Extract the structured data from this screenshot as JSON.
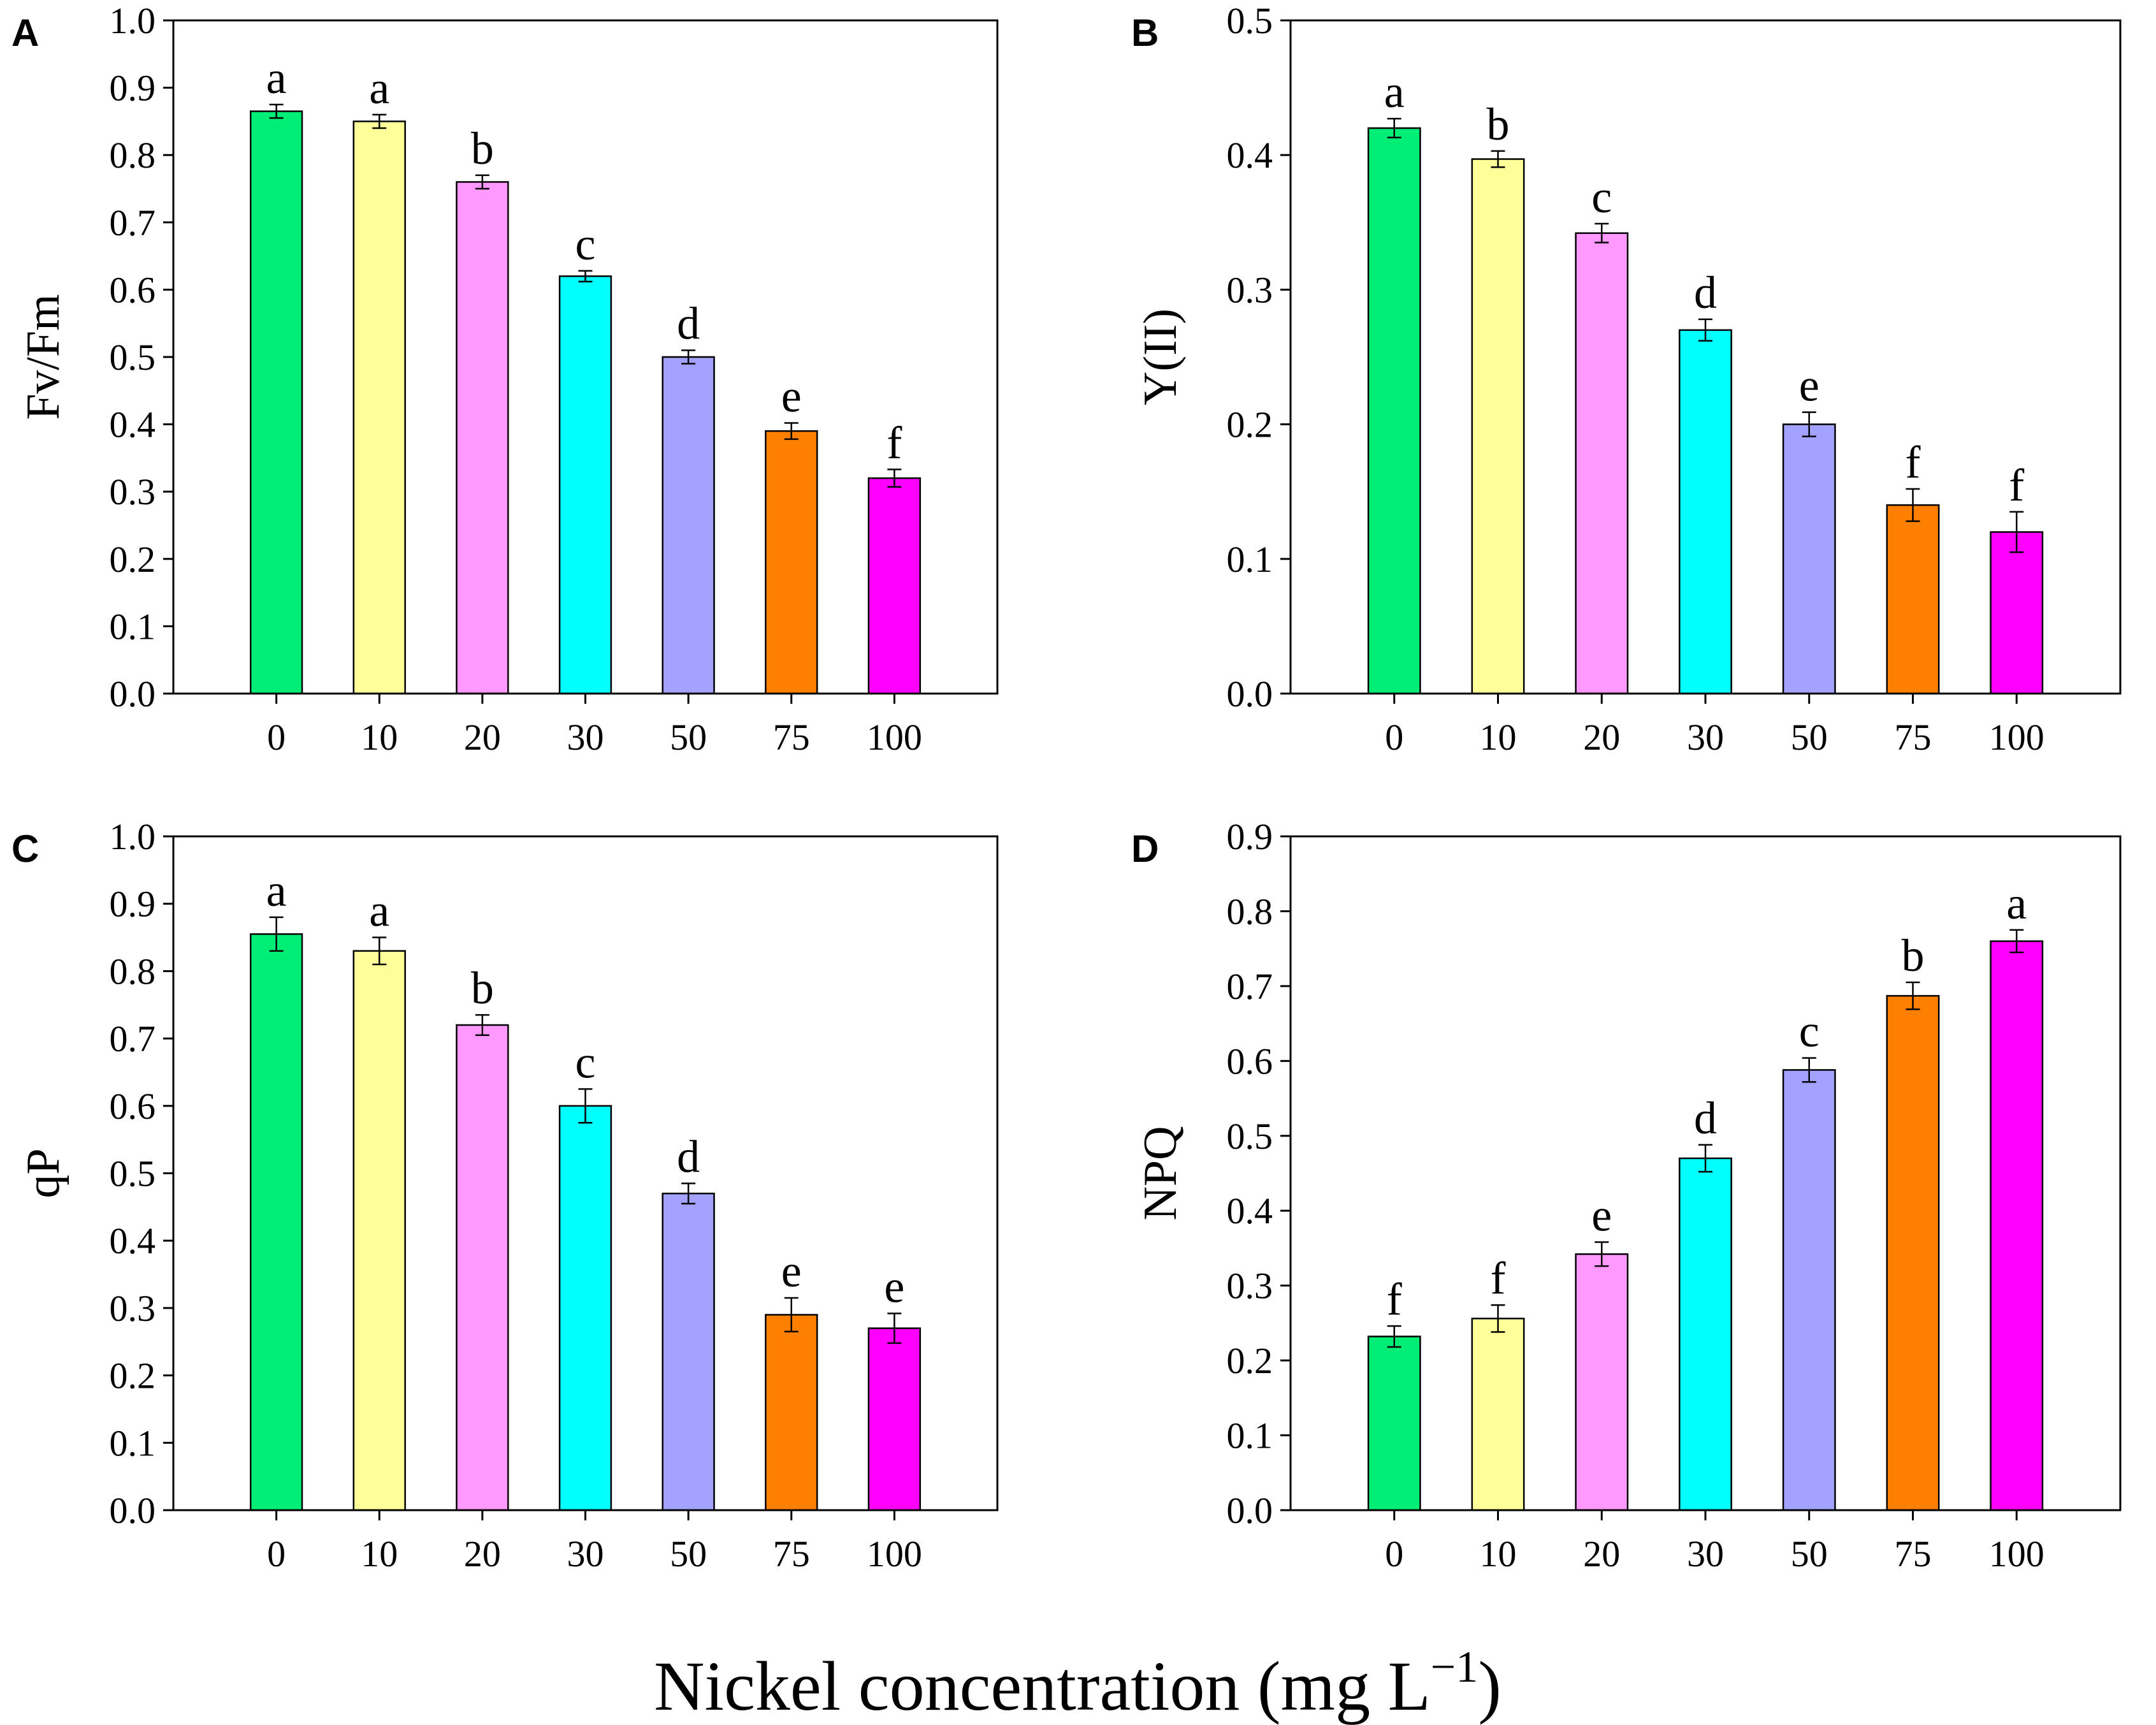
{
  "figure": {
    "xlabel_main": "Nickel concentration (mg L",
    "xlabel_sup": "−1",
    "xlabel_end": ")"
  },
  "colors": [
    "#00ee76",
    "#ffff99",
    "#ff99ff",
    "#00ffff",
    "#a3a3ff",
    "#ff8000",
    "#ff00ff"
  ],
  "chart_data": [
    {
      "panel": "A",
      "type": "bar",
      "ylabel": "Fv/Fm",
      "categories": [
        "0",
        "10",
        "20",
        "30",
        "50",
        "75",
        "100"
      ],
      "values": [
        0.865,
        0.85,
        0.76,
        0.62,
        0.5,
        0.39,
        0.32
      ],
      "errors": [
        0.01,
        0.01,
        0.01,
        0.008,
        0.01,
        0.012,
        0.013
      ],
      "letters": [
        "a",
        "a",
        "b",
        "c",
        "d",
        "e",
        "f"
      ],
      "ylim": [
        0,
        1.0
      ],
      "yticks": [
        "0.0",
        "0.1",
        "0.2",
        "0.3",
        "0.4",
        "0.5",
        "0.6",
        "0.7",
        "0.8",
        "0.9",
        "1.0"
      ]
    },
    {
      "panel": "B",
      "type": "bar",
      "ylabel": "Y(II)",
      "categories": [
        "0",
        "10",
        "20",
        "30",
        "50",
        "75",
        "100"
      ],
      "values": [
        0.42,
        0.397,
        0.342,
        0.27,
        0.2,
        0.14,
        0.12
      ],
      "errors": [
        0.007,
        0.006,
        0.007,
        0.008,
        0.009,
        0.012,
        0.015
      ],
      "letters": [
        "a",
        "b",
        "c",
        "d",
        "e",
        "f",
        "f"
      ],
      "ylim": [
        0,
        0.5
      ],
      "yticks": [
        "0.0",
        "0.1",
        "0.2",
        "0.3",
        "0.4",
        "0.5"
      ]
    },
    {
      "panel": "C",
      "type": "bar",
      "ylabel": "qP",
      "categories": [
        "0",
        "10",
        "20",
        "30",
        "50",
        "75",
        "100"
      ],
      "values": [
        0.855,
        0.83,
        0.72,
        0.6,
        0.47,
        0.29,
        0.27
      ],
      "errors": [
        0.025,
        0.02,
        0.015,
        0.025,
        0.015,
        0.025,
        0.022
      ],
      "letters": [
        "a",
        "a",
        "b",
        "c",
        "d",
        "e",
        "e"
      ],
      "ylim": [
        0,
        1.0
      ],
      "yticks": [
        "0.0",
        "0.1",
        "0.2",
        "0.3",
        "0.4",
        "0.5",
        "0.6",
        "0.7",
        "0.8",
        "0.9",
        "1.0"
      ]
    },
    {
      "panel": "D",
      "type": "bar",
      "ylabel": "NPQ",
      "categories": [
        "0",
        "10",
        "20",
        "30",
        "50",
        "75",
        "100"
      ],
      "values": [
        0.232,
        0.256,
        0.342,
        0.47,
        0.588,
        0.687,
        0.76
      ],
      "errors": [
        0.014,
        0.018,
        0.016,
        0.018,
        0.016,
        0.018,
        0.015
      ],
      "letters": [
        "f",
        "f",
        "e",
        "d",
        "c",
        "b",
        "a"
      ],
      "ylim": [
        0,
        0.9
      ],
      "yticks": [
        "0.0",
        "0.1",
        "0.2",
        "0.3",
        "0.4",
        "0.5",
        "0.6",
        "0.7",
        "0.8",
        "0.9"
      ]
    }
  ]
}
